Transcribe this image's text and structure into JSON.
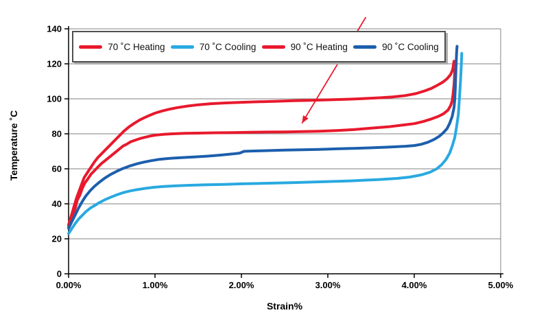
{
  "figure": {
    "background": "#ffffff"
  },
  "chart_data": {
    "type": "line",
    "title": "",
    "xlabel": "Strain%",
    "ylabel": "Temperature ˚C",
    "xlim": [
      0,
      5
    ],
    "ylim": [
      0,
      140
    ],
    "grid": true,
    "legend_position": "top-inside-horizontal",
    "xticks": {
      "values": [
        0,
        1,
        2,
        3,
        4,
        5
      ],
      "labels": [
        "0.00%",
        "1.00%",
        "2.00%",
        "3.00%",
        "4.00%",
        "5.00%"
      ]
    },
    "yticks": {
      "values": [
        0,
        20,
        40,
        60,
        80,
        100,
        120,
        140
      ],
      "labels": [
        "0",
        "20",
        "40",
        "60",
        "80",
        "100",
        "120",
        "140"
      ]
    },
    "colors": {
      "heating_red": "#e8192d",
      "cooling_light_blue": "#29a9e0",
      "cooling_dark_blue": "#1c5fad",
      "grid_gray": "#808080",
      "axis_black": "#000000"
    },
    "annotation_arrow": {
      "from": [
        3.44,
        146.7
      ],
      "to": [
        2.7,
        86.0
      ],
      "color": "#e8192d"
    },
    "series": [
      {
        "name": "70 ˚C Heating",
        "color": "#e8192d",
        "points": [
          [
            0.0,
            27
          ],
          [
            0.03,
            31
          ],
          [
            0.06,
            35
          ],
          [
            0.08,
            38
          ],
          [
            0.1,
            42
          ],
          [
            0.13,
            45
          ],
          [
            0.16,
            49
          ],
          [
            0.19,
            52
          ],
          [
            0.22,
            54
          ],
          [
            0.26,
            57
          ],
          [
            0.3,
            59
          ],
          [
            0.34,
            61
          ],
          [
            0.38,
            63
          ],
          [
            0.43,
            65
          ],
          [
            0.48,
            67
          ],
          [
            0.53,
            69
          ],
          [
            0.58,
            71
          ],
          [
            0.63,
            73
          ],
          [
            0.67,
            74
          ],
          [
            0.72,
            75.5
          ],
          [
            0.78,
            76.5
          ],
          [
            0.84,
            77.5
          ],
          [
            0.9,
            78.2
          ],
          [
            0.95,
            78.8
          ],
          [
            1.0,
            79.2
          ],
          [
            1.1,
            79.7
          ],
          [
            1.2,
            80.0
          ],
          [
            1.35,
            80.3
          ],
          [
            1.5,
            80.4
          ],
          [
            1.7,
            80.6
          ],
          [
            1.9,
            80.7
          ],
          [
            2.1,
            80.9
          ],
          [
            2.3,
            81.0
          ],
          [
            2.5,
            81.1
          ],
          [
            2.7,
            81.3
          ],
          [
            2.9,
            81.5
          ],
          [
            3.1,
            81.9
          ],
          [
            3.3,
            82.4
          ],
          [
            3.5,
            83.2
          ],
          [
            3.7,
            84.0
          ],
          [
            3.85,
            84.9
          ],
          [
            4.0,
            85.8
          ],
          [
            4.1,
            87.0
          ],
          [
            4.2,
            88.5
          ],
          [
            4.28,
            90.0
          ],
          [
            4.34,
            91.5
          ],
          [
            4.39,
            93.5
          ],
          [
            4.42,
            96.0
          ],
          [
            4.44,
            99.0
          ],
          [
            4.45,
            103
          ],
          [
            4.46,
            108
          ],
          [
            4.465,
            112
          ],
          [
            4.47,
            117
          ]
        ]
      },
      {
        "name": "70 ˚C Cooling",
        "color": "#29a9e0",
        "points": [
          [
            0.0,
            23
          ],
          [
            0.04,
            26
          ],
          [
            0.08,
            29
          ],
          [
            0.12,
            31.5
          ],
          [
            0.16,
            33.5
          ],
          [
            0.2,
            35.5
          ],
          [
            0.25,
            37.5
          ],
          [
            0.3,
            39
          ],
          [
            0.36,
            40.8
          ],
          [
            0.42,
            42.3
          ],
          [
            0.48,
            43.6
          ],
          [
            0.55,
            45
          ],
          [
            0.62,
            46.2
          ],
          [
            0.7,
            47.2
          ],
          [
            0.78,
            48
          ],
          [
            0.88,
            48.8
          ],
          [
            0.98,
            49.4
          ],
          [
            1.1,
            49.9
          ],
          [
            1.25,
            50.3
          ],
          [
            1.4,
            50.6
          ],
          [
            1.6,
            50.9
          ],
          [
            1.8,
            51.1
          ],
          [
            2.0,
            51.4
          ],
          [
            2.2,
            51.6
          ],
          [
            2.4,
            51.9
          ],
          [
            2.6,
            52.1
          ],
          [
            2.8,
            52.4
          ],
          [
            3.0,
            52.7
          ],
          [
            3.2,
            53.0
          ],
          [
            3.4,
            53.4
          ],
          [
            3.6,
            53.9
          ],
          [
            3.8,
            54.5
          ],
          [
            3.95,
            55.3
          ],
          [
            4.08,
            56.5
          ],
          [
            4.18,
            58.0
          ],
          [
            4.26,
            60.0
          ],
          [
            4.32,
            62.5
          ],
          [
            4.37,
            65.5
          ],
          [
            4.41,
            69.0
          ],
          [
            4.44,
            73.0
          ],
          [
            4.47,
            78.0
          ],
          [
            4.49,
            84.0
          ],
          [
            4.51,
            91.0
          ],
          [
            4.52,
            98.0
          ],
          [
            4.53,
            106
          ],
          [
            4.54,
            114
          ],
          [
            4.545,
            120
          ],
          [
            4.55,
            126
          ]
        ]
      },
      {
        "name": "90 ˚C Heating",
        "color": "#e8192d",
        "points": [
          [
            0.0,
            28
          ],
          [
            0.03,
            33
          ],
          [
            0.06,
            38
          ],
          [
            0.09,
            43
          ],
          [
            0.12,
            47
          ],
          [
            0.15,
            51
          ],
          [
            0.18,
            55
          ],
          [
            0.22,
            58
          ],
          [
            0.26,
            61
          ],
          [
            0.3,
            64
          ],
          [
            0.34,
            66.5
          ],
          [
            0.39,
            69
          ],
          [
            0.44,
            71.5
          ],
          [
            0.49,
            74
          ],
          [
            0.54,
            76.5
          ],
          [
            0.59,
            79
          ],
          [
            0.64,
            81.5
          ],
          [
            0.7,
            84
          ],
          [
            0.76,
            86
          ],
          [
            0.82,
            87.8
          ],
          [
            0.88,
            89.3
          ],
          [
            0.94,
            90.6
          ],
          [
            1.0,
            91.8
          ],
          [
            1.08,
            93
          ],
          [
            1.16,
            94
          ],
          [
            1.26,
            95
          ],
          [
            1.38,
            95.9
          ],
          [
            1.5,
            96.6
          ],
          [
            1.65,
            97.2
          ],
          [
            1.8,
            97.6
          ],
          [
            2.0,
            98.0
          ],
          [
            2.2,
            98.3
          ],
          [
            2.4,
            98.6
          ],
          [
            2.6,
            98.9
          ],
          [
            2.8,
            99.1
          ],
          [
            3.0,
            99.4
          ],
          [
            3.2,
            99.7
          ],
          [
            3.4,
            100.1
          ],
          [
            3.6,
            100.6
          ],
          [
            3.75,
            101.1
          ],
          [
            3.9,
            101.9
          ],
          [
            4.02,
            103
          ],
          [
            4.12,
            104.5
          ],
          [
            4.2,
            106
          ],
          [
            4.27,
            107.8
          ],
          [
            4.33,
            109.5
          ],
          [
            4.38,
            111.5
          ],
          [
            4.42,
            113.8
          ],
          [
            4.44,
            116
          ],
          [
            4.45,
            118
          ],
          [
            4.455,
            120
          ],
          [
            4.46,
            121.5
          ]
        ]
      },
      {
        "name": "90 ˚C Cooling",
        "color": "#1c5fad",
        "points": [
          [
            0.0,
            26
          ],
          [
            0.04,
            30
          ],
          [
            0.08,
            34
          ],
          [
            0.12,
            38
          ],
          [
            0.16,
            41.5
          ],
          [
            0.2,
            44.5
          ],
          [
            0.25,
            47.5
          ],
          [
            0.3,
            50
          ],
          [
            0.36,
            52.5
          ],
          [
            0.42,
            54.7
          ],
          [
            0.48,
            56.6
          ],
          [
            0.55,
            58.4
          ],
          [
            0.62,
            60
          ],
          [
            0.7,
            61.5
          ],
          [
            0.78,
            62.7
          ],
          [
            0.86,
            63.7
          ],
          [
            0.95,
            64.6
          ],
          [
            1.05,
            65.4
          ],
          [
            1.15,
            65.9
          ],
          [
            1.3,
            66.4
          ],
          [
            1.45,
            66.8
          ],
          [
            1.6,
            67.2
          ],
          [
            1.75,
            67.8
          ],
          [
            1.9,
            68.5
          ],
          [
            1.98,
            69.0
          ],
          [
            2.03,
            70.0
          ],
          [
            2.15,
            70.2
          ],
          [
            2.3,
            70.4
          ],
          [
            2.5,
            70.7
          ],
          [
            2.7,
            70.9
          ],
          [
            2.9,
            71.1
          ],
          [
            3.1,
            71.4
          ],
          [
            3.3,
            71.7
          ],
          [
            3.5,
            72.0
          ],
          [
            3.7,
            72.4
          ],
          [
            3.9,
            72.9
          ],
          [
            4.0,
            73.3
          ],
          [
            4.08,
            74.0
          ],
          [
            4.16,
            75.2
          ],
          [
            4.23,
            76.8
          ],
          [
            4.29,
            78.6
          ],
          [
            4.34,
            80.8
          ],
          [
            4.38,
            83.0
          ],
          [
            4.41,
            86.0
          ],
          [
            4.44,
            90.0
          ],
          [
            4.46,
            95.0
          ],
          [
            4.47,
            100
          ],
          [
            4.475,
            106
          ],
          [
            4.48,
            113
          ],
          [
            4.485,
            120
          ],
          [
            4.49,
            126
          ],
          [
            4.495,
            130
          ]
        ]
      }
    ]
  }
}
